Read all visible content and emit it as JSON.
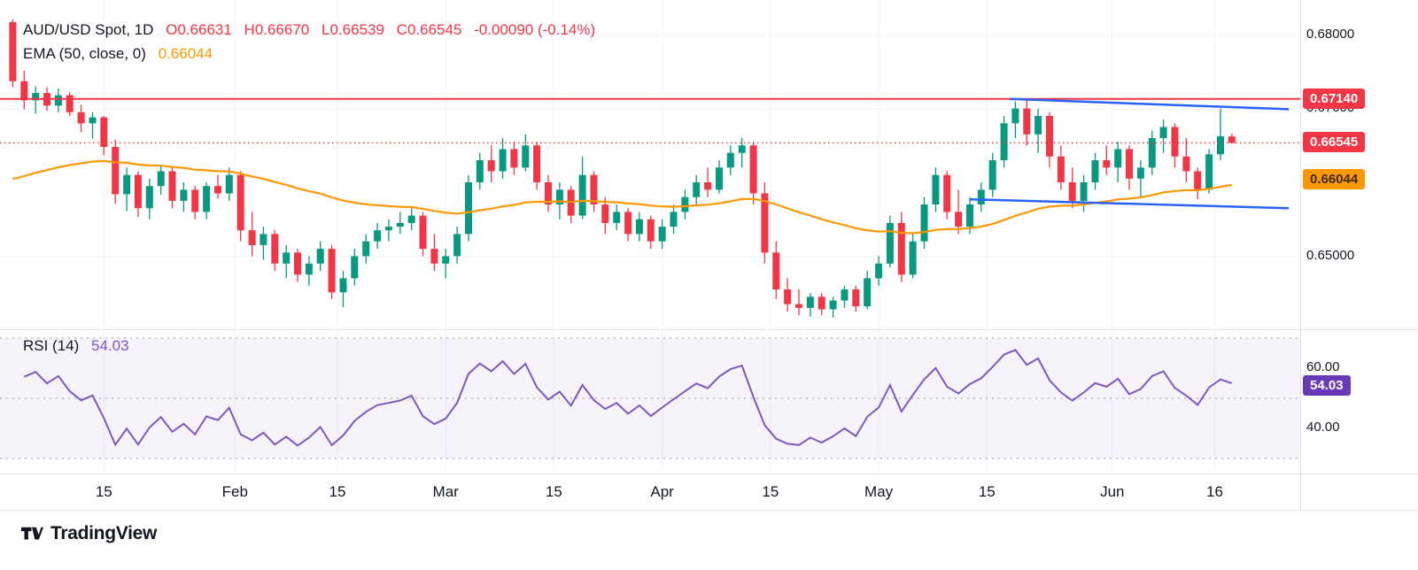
{
  "colors": {
    "up": "#089981",
    "down": "#f23645",
    "ema": "#ff9800",
    "trendline": "#2962ff",
    "rsi": "#7e57c2",
    "rsi_badge": "#673ab7",
    "grid": "#f0f3fa",
    "divider": "#e0e3eb",
    "text": "#131722"
  },
  "legend": {
    "symbol": "AUD/USD Spot, 1D",
    "ohlc": [
      {
        "k": "O",
        "v": "0.66631"
      },
      {
        "k": "H",
        "v": "0.66670"
      },
      {
        "k": "L",
        "v": "0.66539"
      },
      {
        "k": "C",
        "v": "0.66545"
      }
    ],
    "change": "-0.00090 (-0.14%)",
    "ema_label": "EMA (50, close, 0)",
    "ema_value": "0.66044"
  },
  "rsi_legend": {
    "label": "RSI (14)",
    "value": "54.03"
  },
  "branding": {
    "name": "TradingView"
  },
  "chart_data": {
    "type": "candlestick",
    "title": "AUD/USD Spot, 1D",
    "timeframe": "1D",
    "y_axis": {
      "min": 0.6402,
      "max": 0.6848,
      "labels": [
        {
          "t": "0.68000",
          "p": 0.68
        },
        {
          "t": "0.67000",
          "p": 0.67
        },
        {
          "t": "0.65000",
          "p": 0.65
        }
      ],
      "badges": [
        {
          "t": "0.67140",
          "p": 0.6714,
          "type": "level"
        },
        {
          "t": "0.66545",
          "p": 0.66545,
          "type": "last"
        },
        {
          "t": "0.66044",
          "p": 0.66044,
          "type": "ema"
        }
      ]
    },
    "x_labels": [
      {
        "t": "15",
        "i": 8
      },
      {
        "t": "Feb",
        "i": 19.5
      },
      {
        "t": "15",
        "i": 28.5
      },
      {
        "t": "Mar",
        "i": 38
      },
      {
        "t": "15",
        "i": 47.5
      },
      {
        "t": "Apr",
        "i": 57
      },
      {
        "t": "15",
        "i": 66.5
      },
      {
        "t": "May",
        "i": 76
      },
      {
        "t": "15",
        "i": 85.5
      },
      {
        "t": "Jun",
        "i": 96.5
      },
      {
        "t": "16",
        "i": 105.5
      }
    ],
    "overlays": {
      "ema": {
        "period": 50,
        "source": "close",
        "offset": 0,
        "current": 0.66044,
        "seed": 0.66
      },
      "levels": [
        {
          "price": 0.6714,
          "style": "solid",
          "label": "0.67140"
        },
        {
          "price": 0.66545,
          "style": "dotted",
          "label": "0.66545"
        }
      ],
      "trendlines": [
        {
          "i1": 87.5,
          "p1": 0.6714,
          "i2": 112,
          "p2": 0.67
        },
        {
          "i1": 84,
          "p1": 0.6578,
          "i2": 112,
          "p2": 0.6566
        }
      ]
    },
    "rsi": {
      "period": 14,
      "current": 54.03,
      "bands": [
        70,
        50,
        30
      ],
      "seed_avg_gain": 0.0012,
      "seed_avg_loss": 0.0007,
      "axis_labels": [
        {
          "t": "60.00",
          "v": 60
        },
        {
          "t": "40.00",
          "v": 40
        }
      ],
      "badge": {
        "t": "54.03",
        "v": 54.03
      }
    },
    "candles": [
      [
        0.6818,
        0.6822,
        0.673,
        0.6738
      ],
      [
        0.6738,
        0.6752,
        0.67,
        0.6712
      ],
      [
        0.6712,
        0.6731,
        0.6694,
        0.6722
      ],
      [
        0.6722,
        0.673,
        0.6698,
        0.6705
      ],
      [
        0.6705,
        0.6728,
        0.6696,
        0.6719
      ],
      [
        0.6719,
        0.6723,
        0.6691,
        0.6696
      ],
      [
        0.6696,
        0.6706,
        0.6669,
        0.6681
      ],
      [
        0.6681,
        0.6696,
        0.666,
        0.6689
      ],
      [
        0.6689,
        0.6691,
        0.6638,
        0.6649
      ],
      [
        0.6649,
        0.6659,
        0.6572,
        0.6585
      ],
      [
        0.6585,
        0.6621,
        0.6562,
        0.6611
      ],
      [
        0.6611,
        0.6616,
        0.6554,
        0.6566
      ],
      [
        0.6566,
        0.6606,
        0.6551,
        0.6596
      ],
      [
        0.6596,
        0.6625,
        0.6584,
        0.6616
      ],
      [
        0.6616,
        0.6621,
        0.6566,
        0.6576
      ],
      [
        0.6576,
        0.6601,
        0.6561,
        0.6591
      ],
      [
        0.6591,
        0.6596,
        0.6551,
        0.6561
      ],
      [
        0.6561,
        0.6601,
        0.6551,
        0.6596
      ],
      [
        0.6596,
        0.6611,
        0.6579,
        0.6586
      ],
      [
        0.6586,
        0.6621,
        0.6576,
        0.6611
      ],
      [
        0.6611,
        0.6616,
        0.6521,
        0.6536
      ],
      [
        0.6536,
        0.6561,
        0.6501,
        0.6516
      ],
      [
        0.6516,
        0.6541,
        0.6496,
        0.6531
      ],
      [
        0.6531,
        0.6536,
        0.6481,
        0.6491
      ],
      [
        0.6491,
        0.6516,
        0.6471,
        0.6506
      ],
      [
        0.6506,
        0.6511,
        0.6466,
        0.6476
      ],
      [
        0.6476,
        0.6501,
        0.6461,
        0.6491
      ],
      [
        0.6491,
        0.6521,
        0.6481,
        0.6511
      ],
      [
        0.6511,
        0.6516,
        0.6443,
        0.6452
      ],
      [
        0.6452,
        0.6481,
        0.6432,
        0.6471
      ],
      [
        0.6471,
        0.6511,
        0.6461,
        0.6501
      ],
      [
        0.6501,
        0.6531,
        0.6491,
        0.6521
      ],
      [
        0.6521,
        0.6546,
        0.6511,
        0.6536
      ],
      [
        0.6536,
        0.6551,
        0.6521,
        0.6541
      ],
      [
        0.6541,
        0.6561,
        0.6531,
        0.6546
      ],
      [
        0.6546,
        0.6566,
        0.6536,
        0.6556
      ],
      [
        0.6556,
        0.6561,
        0.6501,
        0.6511
      ],
      [
        0.6511,
        0.6531,
        0.6481,
        0.6491
      ],
      [
        0.6491,
        0.6511,
        0.6471,
        0.6501
      ],
      [
        0.6501,
        0.6541,
        0.6491,
        0.6531
      ],
      [
        0.6531,
        0.6611,
        0.6521,
        0.6601
      ],
      [
        0.6601,
        0.6641,
        0.6591,
        0.6631
      ],
      [
        0.6631,
        0.6651,
        0.6601,
        0.6616
      ],
      [
        0.6616,
        0.6661,
        0.6606,
        0.6646
      ],
      [
        0.6646,
        0.6656,
        0.6611,
        0.6621
      ],
      [
        0.6621,
        0.6666,
        0.6616,
        0.6651
      ],
      [
        0.6651,
        0.6656,
        0.6591,
        0.6601
      ],
      [
        0.6601,
        0.6611,
        0.6561,
        0.6571
      ],
      [
        0.6571,
        0.6601,
        0.6551,
        0.6591
      ],
      [
        0.6591,
        0.6596,
        0.6546,
        0.6556
      ],
      [
        0.6556,
        0.6636,
        0.6551,
        0.6611
      ],
      [
        0.6611,
        0.6616,
        0.6561,
        0.6571
      ],
      [
        0.6571,
        0.6581,
        0.6531,
        0.6546
      ],
      [
        0.6546,
        0.6571,
        0.6536,
        0.6561
      ],
      [
        0.6561,
        0.6566,
        0.6521,
        0.6531
      ],
      [
        0.6531,
        0.6561,
        0.6521,
        0.6551
      ],
      [
        0.6551,
        0.6556,
        0.6511,
        0.6521
      ],
      [
        0.6521,
        0.6551,
        0.6511,
        0.6541
      ],
      [
        0.6541,
        0.6571,
        0.6531,
        0.6561
      ],
      [
        0.6561,
        0.6591,
        0.6551,
        0.6581
      ],
      [
        0.6581,
        0.6611,
        0.6571,
        0.6601
      ],
      [
        0.6601,
        0.6621,
        0.6581,
        0.6591
      ],
      [
        0.6591,
        0.6631,
        0.6586,
        0.6621
      ],
      [
        0.6621,
        0.6651,
        0.6611,
        0.6641
      ],
      [
        0.6641,
        0.6661,
        0.6621,
        0.6651
      ],
      [
        0.6651,
        0.6656,
        0.6571,
        0.6586
      ],
      [
        0.6586,
        0.6601,
        0.6491,
        0.6506
      ],
      [
        0.6506,
        0.6521,
        0.6443,
        0.6456
      ],
      [
        0.6456,
        0.6471,
        0.6426,
        0.6436
      ],
      [
        0.6436,
        0.6456,
        0.6421,
        0.6431
      ],
      [
        0.6431,
        0.6451,
        0.6419,
        0.6446
      ],
      [
        0.6446,
        0.6451,
        0.6421,
        0.6429
      ],
      [
        0.6429,
        0.6446,
        0.6418,
        0.6441
      ],
      [
        0.6441,
        0.6461,
        0.6431,
        0.6456
      ],
      [
        0.6456,
        0.6461,
        0.6426,
        0.6433
      ],
      [
        0.6433,
        0.6481,
        0.6429,
        0.6471
      ],
      [
        0.6471,
        0.6501,
        0.6461,
        0.6491
      ],
      [
        0.6491,
        0.6556,
        0.6486,
        0.6546
      ],
      [
        0.6546,
        0.6561,
        0.6466,
        0.6476
      ],
      [
        0.6476,
        0.6531,
        0.6471,
        0.6521
      ],
      [
        0.6521,
        0.6581,
        0.6511,
        0.6571
      ],
      [
        0.6571,
        0.6621,
        0.6561,
        0.6611
      ],
      [
        0.6611,
        0.6616,
        0.6551,
        0.6561
      ],
      [
        0.6561,
        0.6591,
        0.6531,
        0.6541
      ],
      [
        0.6541,
        0.6581,
        0.6531,
        0.6571
      ],
      [
        0.6571,
        0.6601,
        0.6561,
        0.6591
      ],
      [
        0.6591,
        0.6641,
        0.6581,
        0.6631
      ],
      [
        0.6631,
        0.6691,
        0.6621,
        0.6681
      ],
      [
        0.6681,
        0.6711,
        0.6661,
        0.6701
      ],
      [
        0.6701,
        0.6714,
        0.6651,
        0.6666
      ],
      [
        0.6666,
        0.6701,
        0.6641,
        0.6691
      ],
      [
        0.6691,
        0.6696,
        0.6621,
        0.6636
      ],
      [
        0.6636,
        0.6651,
        0.6591,
        0.6601
      ],
      [
        0.6601,
        0.6621,
        0.6566,
        0.6576
      ],
      [
        0.6576,
        0.6611,
        0.6561,
        0.6601
      ],
      [
        0.6601,
        0.6641,
        0.6591,
        0.6631
      ],
      [
        0.6631,
        0.6651,
        0.6611,
        0.6621
      ],
      [
        0.6621,
        0.6656,
        0.6601,
        0.6646
      ],
      [
        0.6646,
        0.6651,
        0.6591,
        0.6606
      ],
      [
        0.6606,
        0.6631,
        0.6581,
        0.6621
      ],
      [
        0.6621,
        0.6671,
        0.6611,
        0.6661
      ],
      [
        0.6661,
        0.6686,
        0.6641,
        0.6676
      ],
      [
        0.6676,
        0.6681,
        0.6621,
        0.6636
      ],
      [
        0.6636,
        0.6661,
        0.6601,
        0.6616
      ],
      [
        0.6616,
        0.6621,
        0.6578,
        0.6591
      ],
      [
        0.6591,
        0.6646,
        0.6586,
        0.6639
      ],
      [
        0.6639,
        0.6701,
        0.6631,
        0.66635
      ],
      [
        0.66631,
        0.6667,
        0.66539,
        0.66545
      ]
    ]
  }
}
